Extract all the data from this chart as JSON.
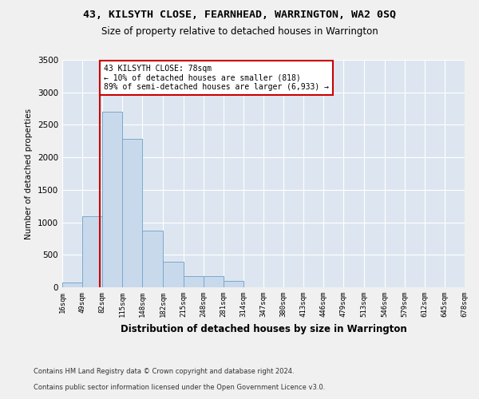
{
  "title": "43, KILSYTH CLOSE, FEARNHEAD, WARRINGTON, WA2 0SQ",
  "subtitle": "Size of property relative to detached houses in Warrington",
  "xlabel": "Distribution of detached houses by size in Warrington",
  "ylabel": "Number of detached properties",
  "footer_line1": "Contains HM Land Registry data © Crown copyright and database right 2024.",
  "footer_line2": "Contains public sector information licensed under the Open Government Licence v3.0.",
  "annotation_line1": "43 KILSYTH CLOSE: 78sqm",
  "annotation_line2": "← 10% of detached houses are smaller (818)",
  "annotation_line3": "89% of semi-detached houses are larger (6,933) →",
  "property_size": 78,
  "bar_color": "#c9d9ec",
  "bar_edge_color": "#7aa8cc",
  "red_line_color": "#cc0000",
  "annotation_box_color": "#ffffff",
  "annotation_box_edge_color": "#cc0000",
  "background_color": "#dde6f0",
  "grid_color": "#ffffff",
  "fig_background": "#f0f0f0",
  "bin_edges": [
    16,
    49,
    82,
    115,
    148,
    182,
    215,
    248,
    281,
    314,
    347,
    380,
    413,
    446,
    479,
    513,
    546,
    579,
    612,
    645,
    678
  ],
  "bin_labels": [
    "16sqm",
    "49sqm",
    "82sqm",
    "115sqm",
    "148sqm",
    "182sqm",
    "215sqm",
    "248sqm",
    "281sqm",
    "314sqm",
    "347sqm",
    "380sqm",
    "413sqm",
    "446sqm",
    "479sqm",
    "513sqm",
    "546sqm",
    "579sqm",
    "612sqm",
    "645sqm",
    "678sqm"
  ],
  "bar_heights": [
    70,
    1090,
    2700,
    2280,
    870,
    390,
    175,
    175,
    100,
    0,
    0,
    0,
    0,
    0,
    0,
    0,
    0,
    0,
    0,
    0
  ],
  "ylim": [
    0,
    3500
  ],
  "yticks": [
    0,
    500,
    1000,
    1500,
    2000,
    2500,
    3000,
    3500
  ]
}
